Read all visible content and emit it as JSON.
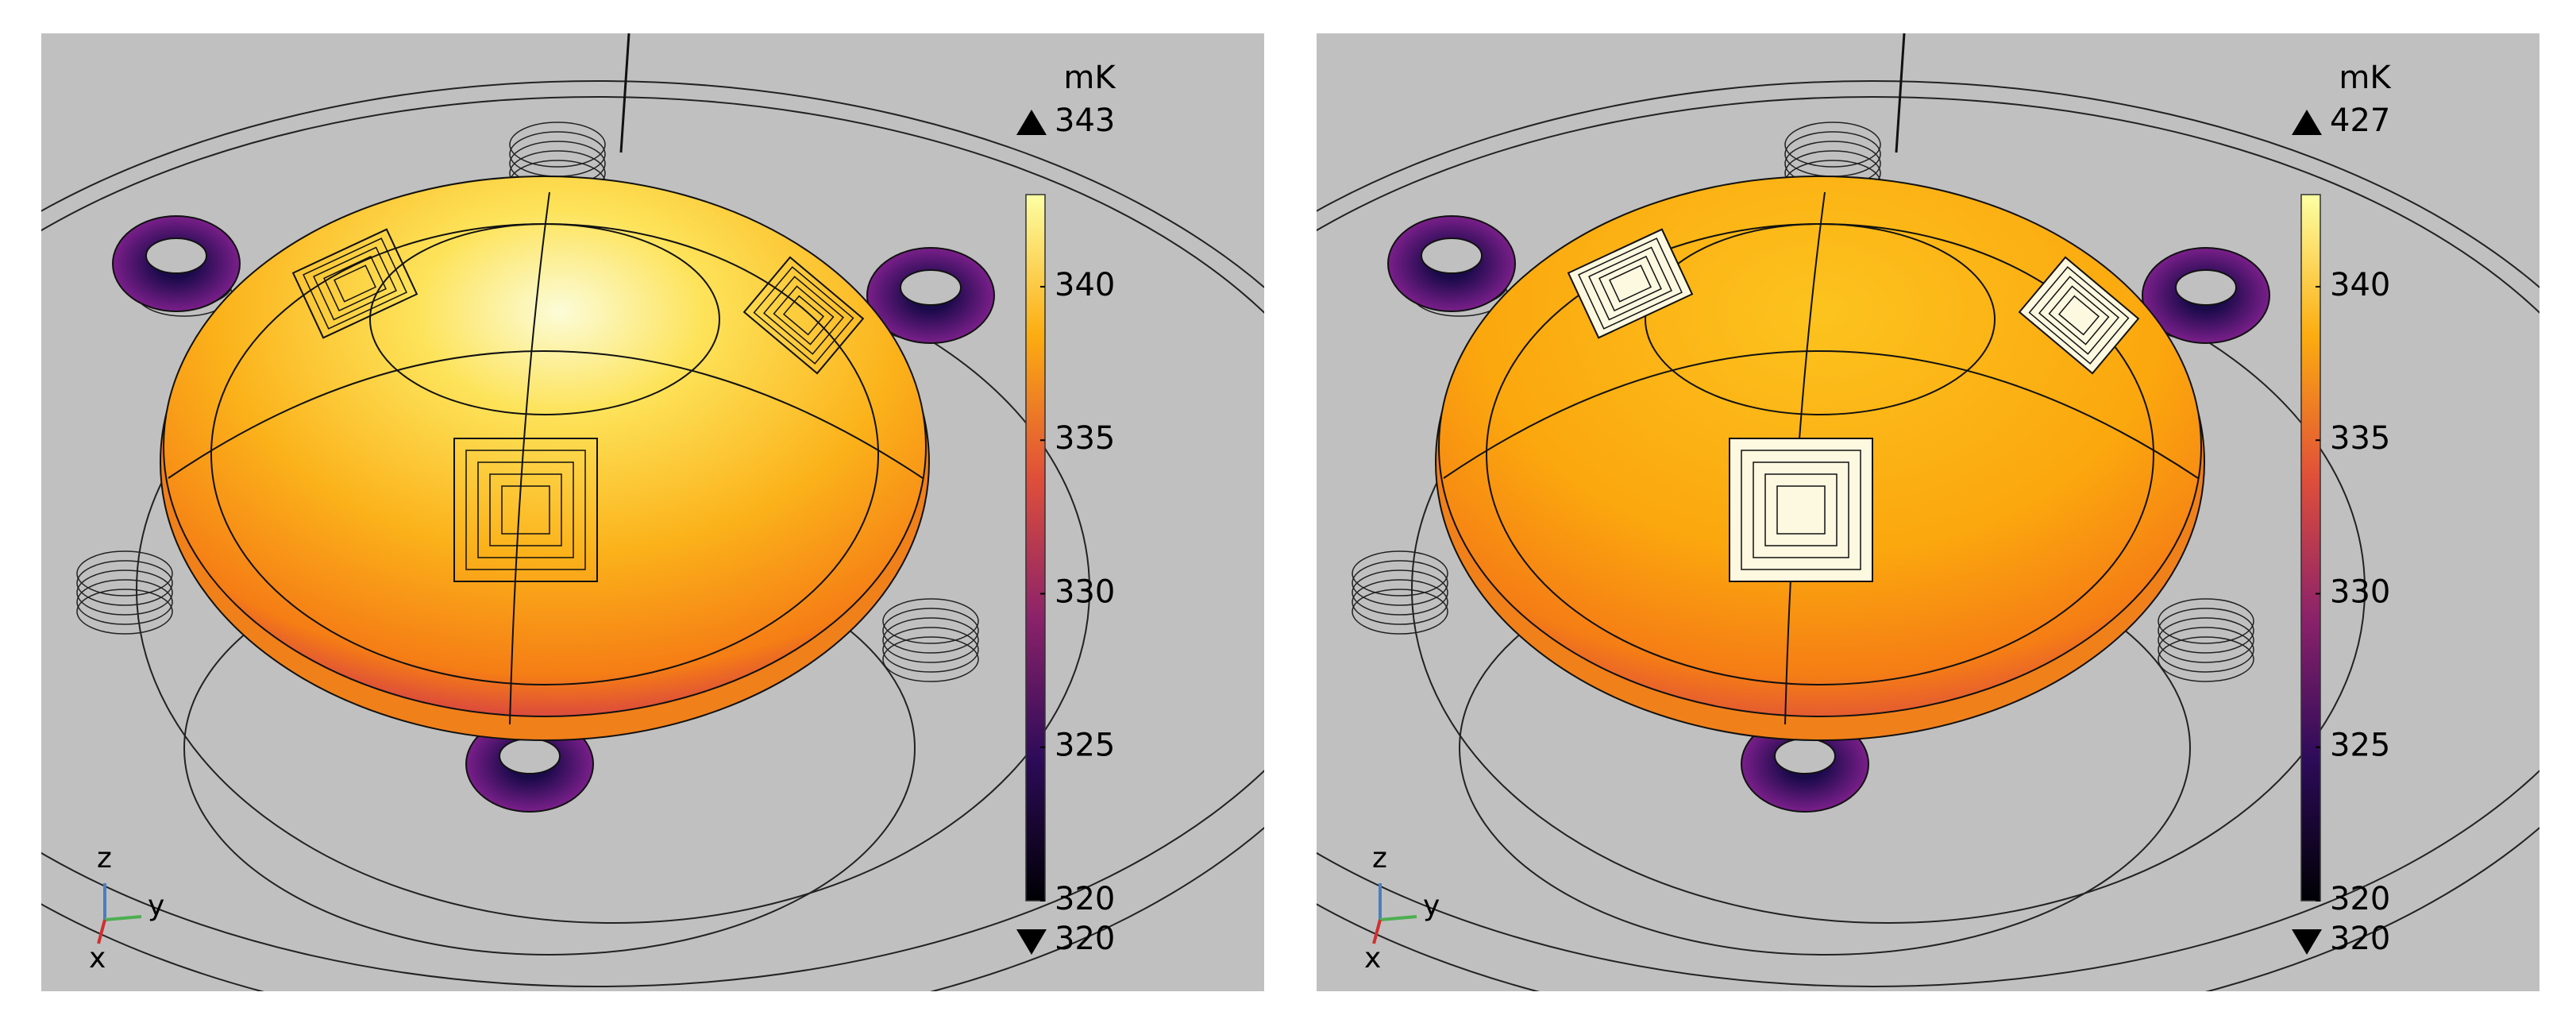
{
  "panels": [
    {
      "unit": "mK",
      "max": 343,
      "min": 320,
      "colorbar": {
        "range": [
          320,
          343
        ],
        "ticks": [
          320,
          325,
          330,
          335,
          340
        ]
      },
      "axes": [
        "z",
        "y",
        "x"
      ]
    },
    {
      "unit": "mK",
      "max": 427,
      "min": 320,
      "colorbar": {
        "range": [
          320,
          343
        ],
        "ticks": [
          320,
          325,
          330,
          335,
          340
        ]
      },
      "axes": [
        "z",
        "y",
        "x"
      ]
    }
  ]
}
